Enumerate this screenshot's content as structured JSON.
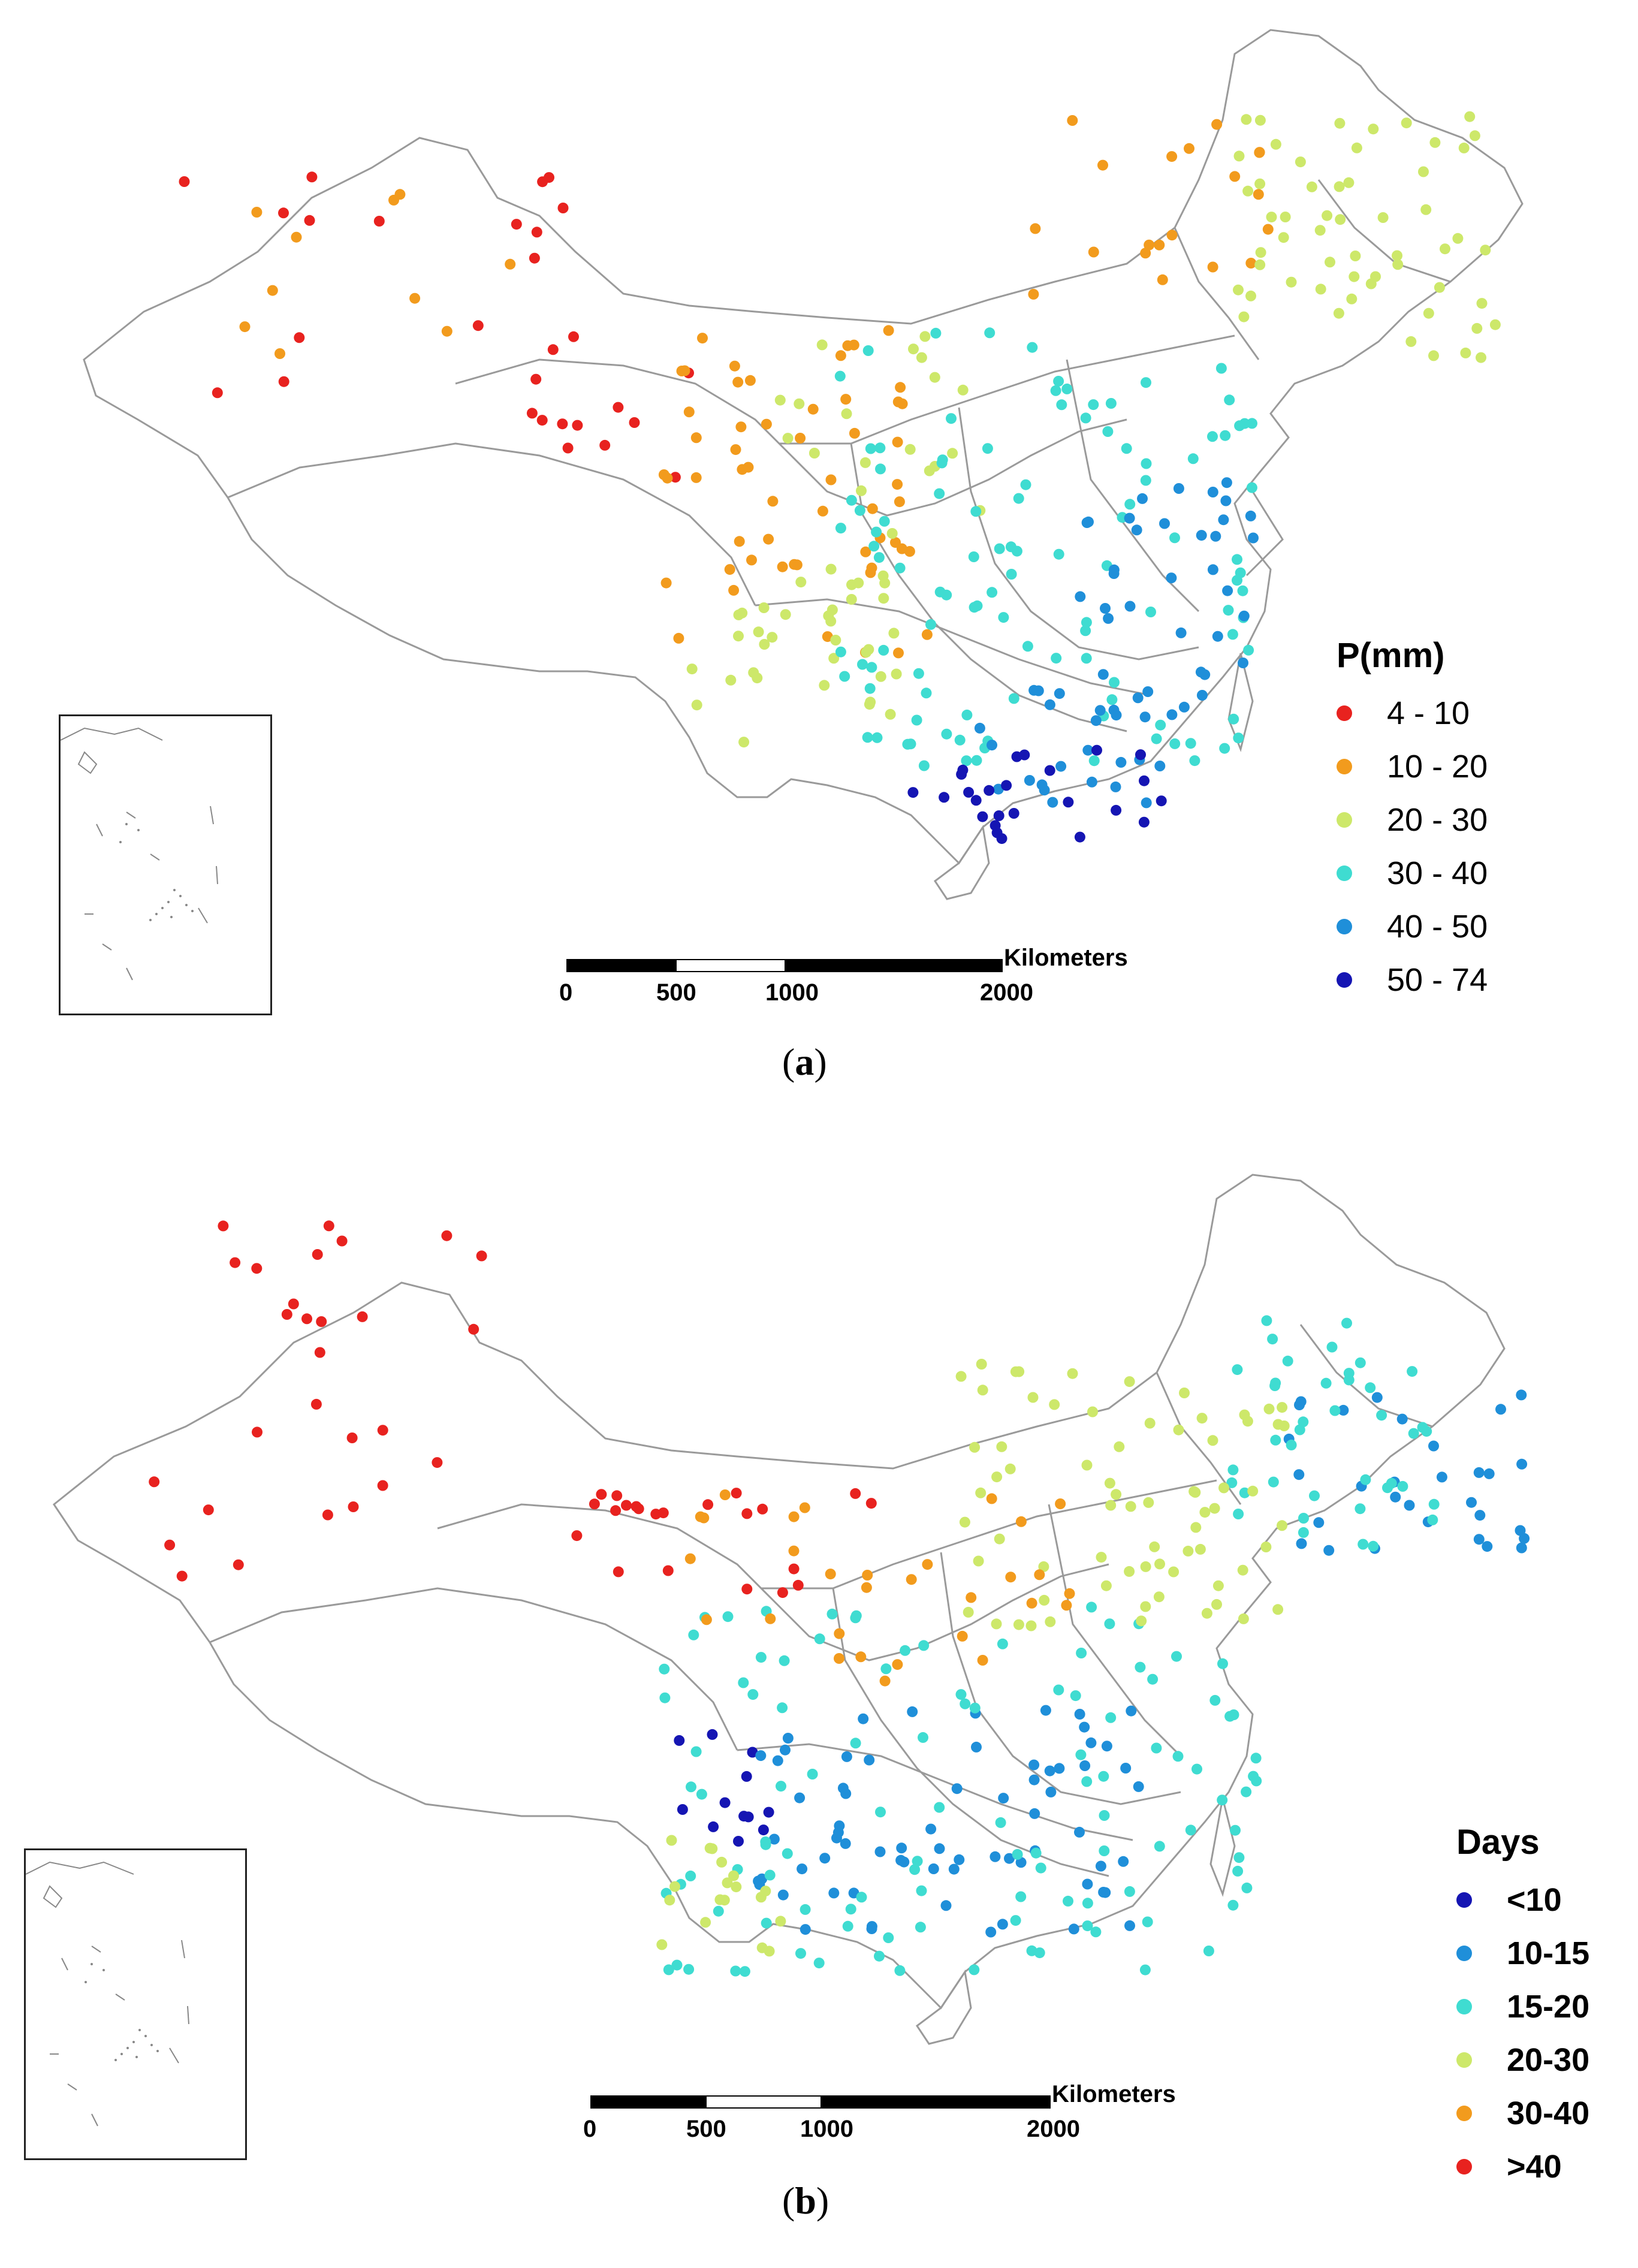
{
  "panels": [
    {
      "id": "a",
      "caption_open": "(",
      "caption_letter": "a",
      "caption_close": ")",
      "legend_title": "P(mm)",
      "legend": [
        {
          "label": "4 - 10",
          "color": "#e8221f"
        },
        {
          "label": "10 - 20",
          "color": "#f29b1d"
        },
        {
          "label": "20 - 30",
          "color": "#cde86a"
        },
        {
          "label": "30 - 40",
          "color": "#3fdcd1"
        },
        {
          "label": "40 - 50",
          "color": "#1f8fd9"
        },
        {
          "label": "50 - 74",
          "color": "#1515b3"
        }
      ],
      "scale": {
        "unit": "Kilometers",
        "ticks": [
          "0",
          "500",
          "1000",
          "2000"
        ]
      }
    },
    {
      "id": "b",
      "caption_open": "(",
      "caption_letter": "b",
      "caption_close": ")",
      "legend_title": "Days",
      "legend": [
        {
          "label": "<10",
          "color": "#1515b3"
        },
        {
          "label": "10-15",
          "color": "#1f8fd9"
        },
        {
          "label": "15-20",
          "color": "#3fdcd1"
        },
        {
          "label": "20-30",
          "color": "#cde86a"
        },
        {
          "label": "30-40",
          "color": "#f29b1d"
        },
        {
          "label": ">40",
          "color": "#e8221f"
        }
      ],
      "scale": {
        "unit": "Kilometers",
        "ticks": [
          "0",
          "500",
          "1000",
          "2000"
        ]
      }
    }
  ]
}
